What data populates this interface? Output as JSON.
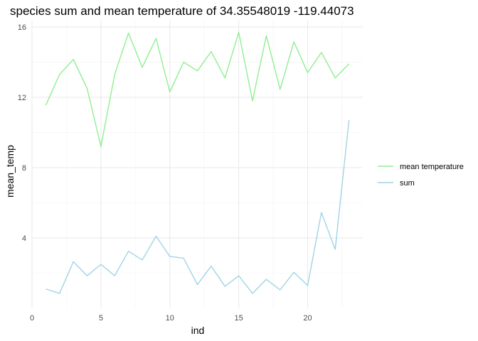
{
  "chart_data": {
    "type": "line",
    "title": "species sum and mean temperature of 34.35548019 -119.44073",
    "xlabel": "ind",
    "ylabel": "mean_temp",
    "xlim": [
      0,
      24
    ],
    "ylim": [
      0,
      16.4
    ],
    "x_ticks": [
      0,
      5,
      10,
      15,
      20
    ],
    "y_ticks": [
      4,
      8,
      12,
      16
    ],
    "grid": true,
    "legend_position": "right",
    "x": [
      1,
      2,
      3,
      4,
      5,
      6,
      7,
      8,
      9,
      10,
      11,
      12,
      13,
      14,
      15,
      16,
      17,
      18,
      19,
      20,
      21,
      22,
      23
    ],
    "series": [
      {
        "name": "mean temperature",
        "color": "#90EE90",
        "values": [
          11.55,
          13.3,
          14.15,
          12.5,
          9.2,
          13.3,
          15.65,
          13.7,
          15.35,
          12.3,
          14.0,
          13.5,
          14.6,
          13.1,
          15.7,
          11.8,
          15.5,
          12.45,
          15.15,
          13.4,
          14.55,
          13.1,
          13.9
        ]
      },
      {
        "name": "sum",
        "color": "#9FD4E6",
        "values": [
          1.1,
          0.85,
          2.65,
          1.85,
          2.5,
          1.85,
          3.25,
          2.75,
          4.1,
          2.95,
          2.85,
          1.35,
          2.4,
          1.25,
          1.85,
          0.85,
          1.65,
          1.05,
          2.05,
          1.3,
          5.45,
          3.35,
          10.7
        ]
      }
    ]
  }
}
